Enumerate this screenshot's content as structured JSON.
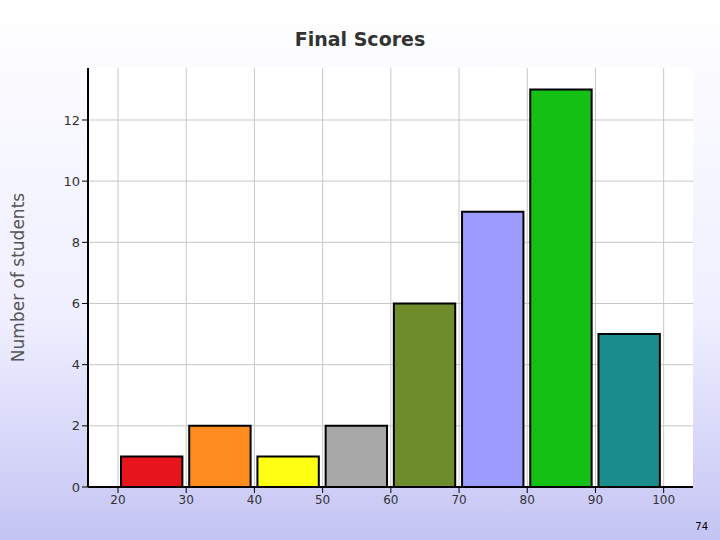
{
  "chart_data": {
    "type": "histogram",
    "title": "Final Scores",
    "y_label": "Number of students",
    "bins": [
      20,
      30,
      40,
      50,
      60,
      70,
      80,
      90,
      100
    ],
    "values": [
      1,
      2,
      1,
      2,
      6,
      9,
      13,
      5
    ],
    "colors": [
      "#e8141c",
      "#ff8c1e",
      "#ffff14",
      "#a8a8a8",
      "#6e8c2c",
      "#9c9cff",
      "#14c014",
      "#1a8c8c"
    ],
    "xlim": [
      15.6,
      104.3
    ],
    "xticks": [
      20,
      30,
      40,
      50,
      60,
      70,
      80,
      90,
      100
    ],
    "ylim": [
      0,
      13.7
    ],
    "yticks": [
      0,
      2,
      4,
      6,
      8,
      10,
      12
    ],
    "grid": true,
    "annotations": [
      "74"
    ]
  }
}
